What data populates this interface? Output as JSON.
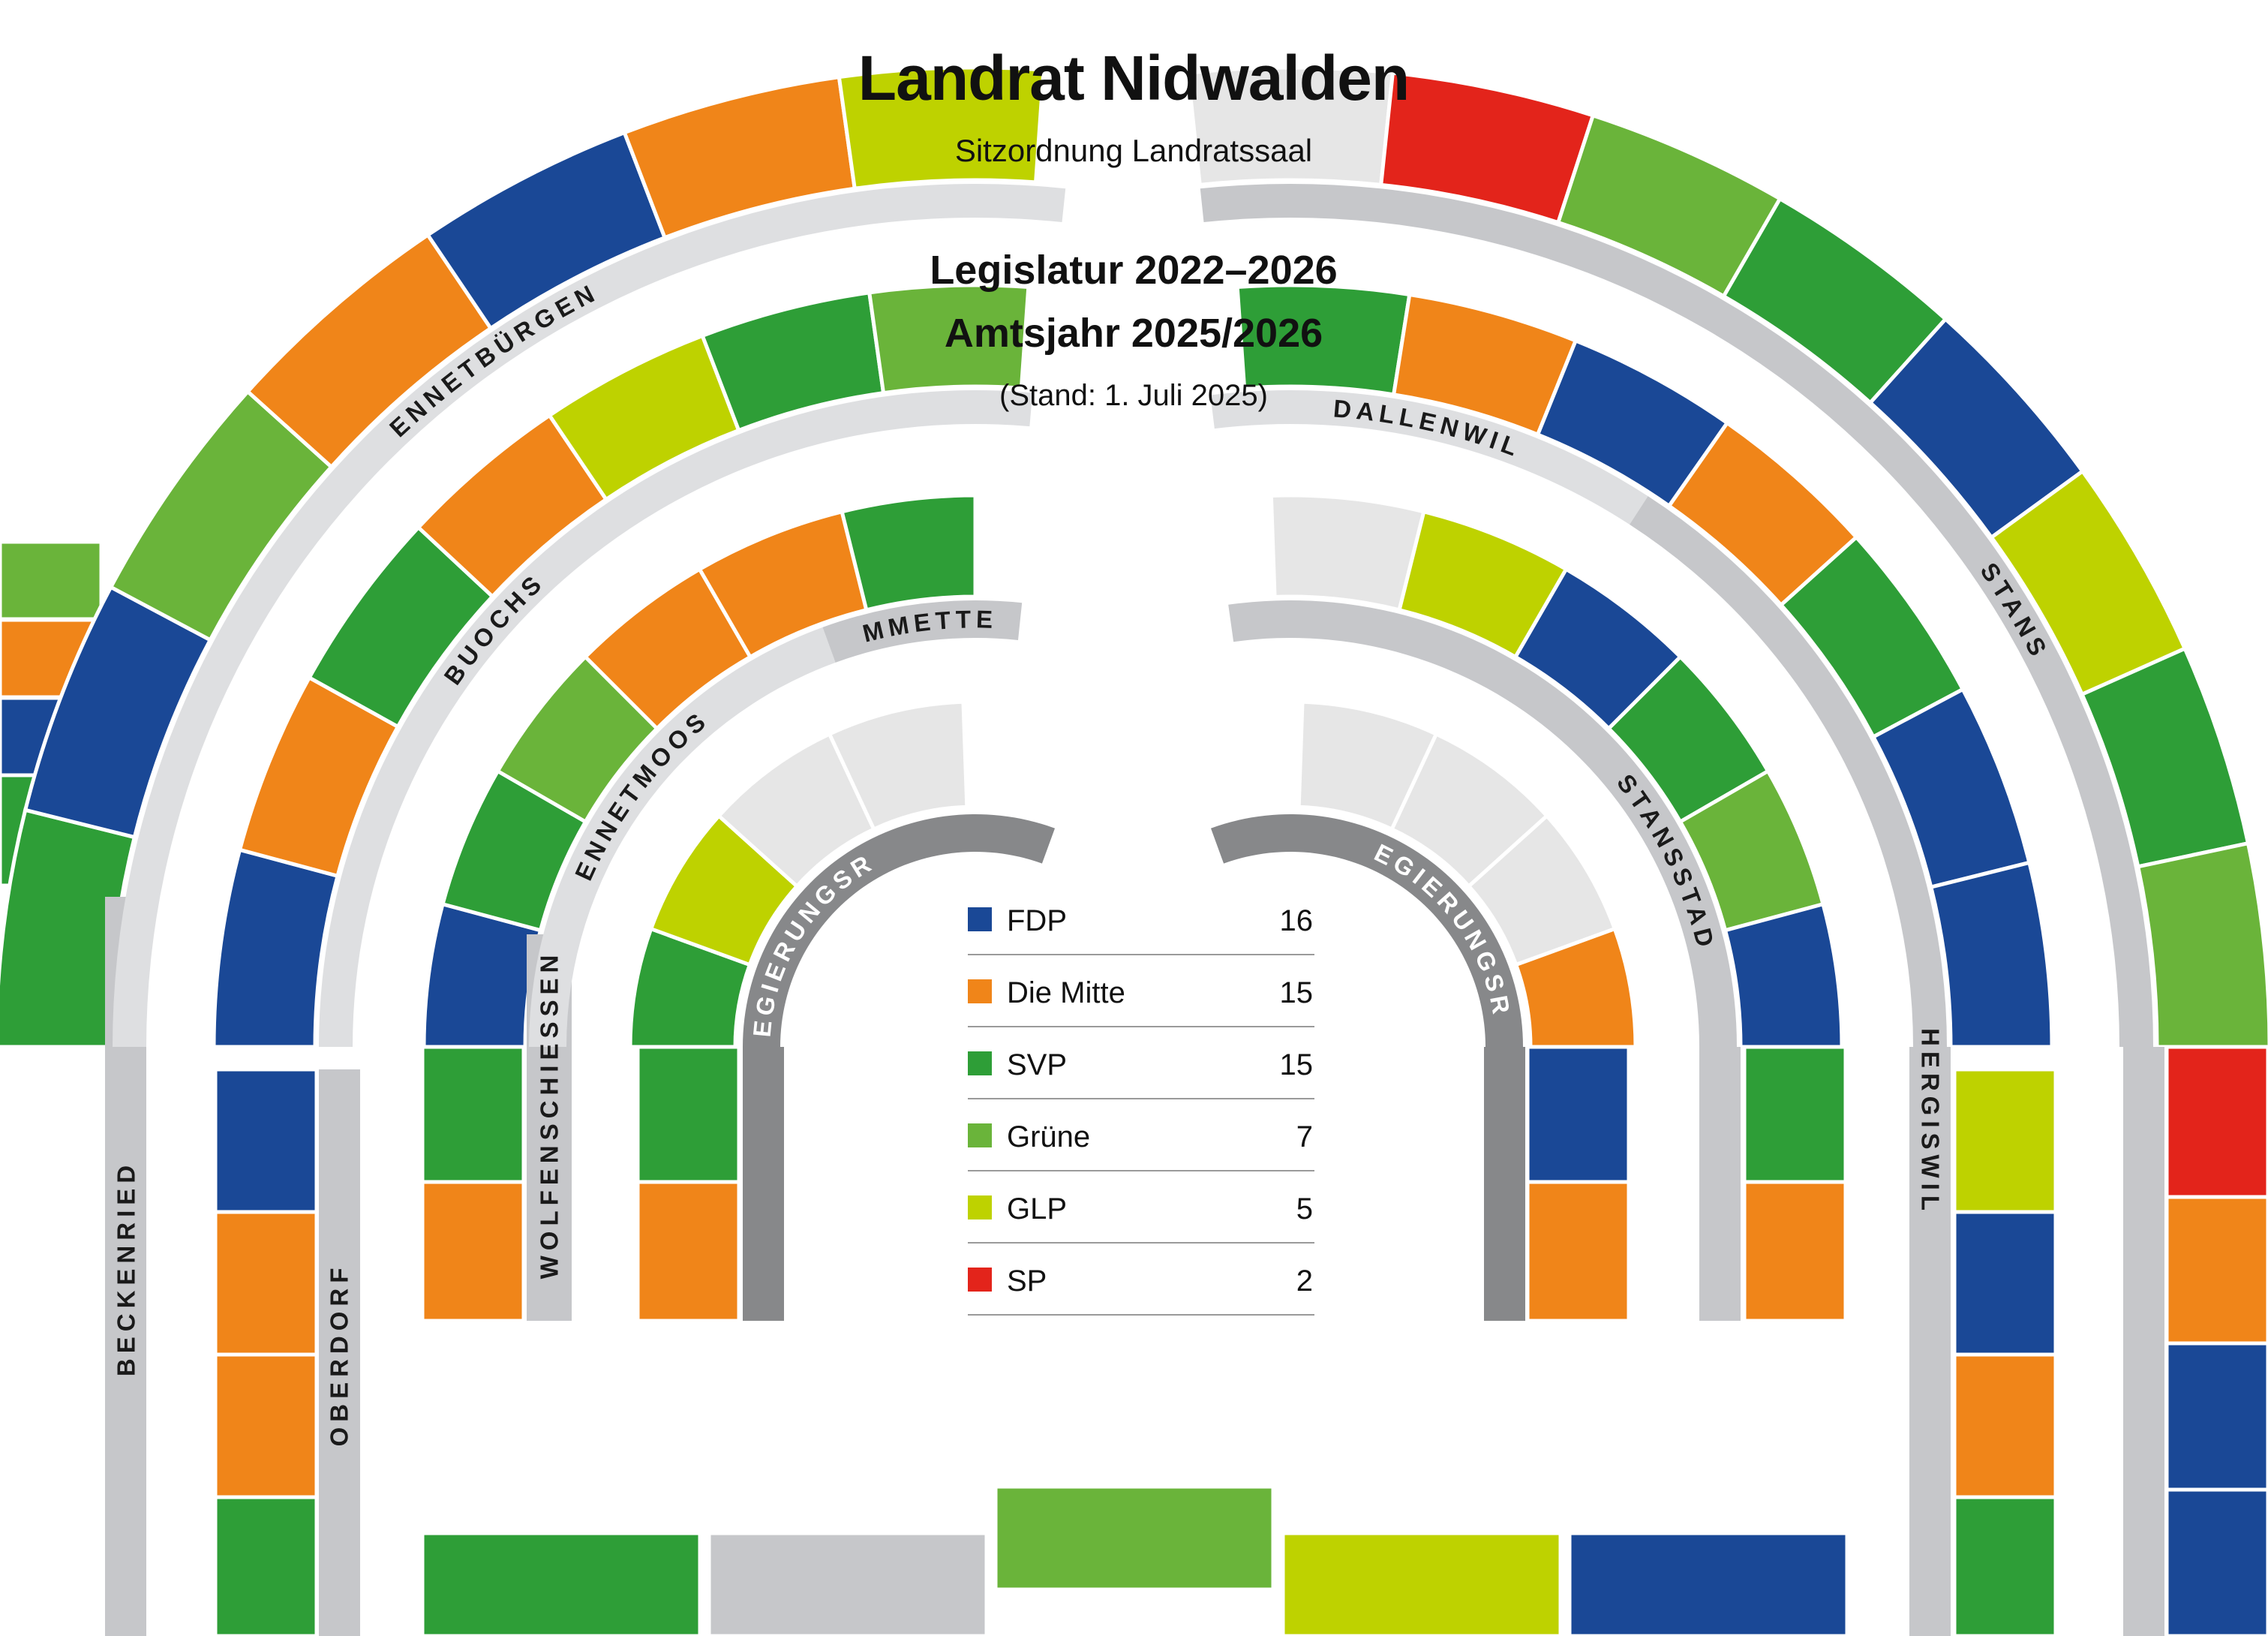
{
  "header": {
    "title": "Landrat Nidwalden",
    "subtitle": "Sitzordnung Landratssaal",
    "legislatur": "Legislatur 2022–2026",
    "amtsjahr": "Amtsjahr 2025/2026",
    "stand": "(Stand: 1. Juli 2025)"
  },
  "colors": {
    "FDP": "#1a4896",
    "Die Mitte": "#f08519",
    "SVP": "#2e9e37",
    "Grüne": "#6ab43a",
    "GLP": "#bed200",
    "SP": "#e3241b",
    "empty": "#e6e6e6",
    "band_light": "#c6c7ca",
    "band_dark": "#87888a",
    "band_pale": "#dedfe1"
  },
  "legend": [
    {
      "party": "FDP",
      "count": "16"
    },
    {
      "party": "Die Mitte",
      "count": "15"
    },
    {
      "party": "SVP",
      "count": "15"
    },
    {
      "party": "Grüne",
      "count": "7"
    },
    {
      "party": "GLP",
      "count": "5"
    },
    {
      "party": "SP",
      "count": "2"
    }
  ],
  "municipalities": {
    "beckenried": "BECKENRIED",
    "ennetbuergen": "ENNETBÜRGEN",
    "oberdorf": "OBERDORF",
    "buochs": "BUOCHS",
    "wolfenschiessen": "WOLFENSCHIESSEN",
    "ennetmoos": "ENNETMOOS",
    "emmetten": "EMMETTEN",
    "regierungsrat_left": "REGIERUNGSRAT",
    "regierungsrat_right": "REGIERUNGSRAT",
    "stansstad": "STANSSTAD",
    "dallenwil": "DALLENWIL",
    "hergiswil": "HERGISWIL",
    "stans": "STANS"
  },
  "seats": {
    "left_outer": [
      "SVP",
      "FDP",
      "Die Mitte",
      "Grüne",
      "SVP",
      "FDP",
      "Grüne",
      "Die Mitte",
      "FDP",
      "Die Mitte",
      "GLP"
    ],
    "left_row2": [
      "SVP",
      "Die Mitte",
      "Die Mitte",
      "FDP",
      "FDP",
      "Die Mitte",
      "SVP",
      "Die Mitte",
      "GLP",
      "SVP",
      "Grüne"
    ],
    "left_row3": [
      "Die Mitte",
      "SVP",
      "FDP",
      "SVP",
      "Grüne",
      "Die Mitte",
      "Die Mitte",
      "SVP"
    ],
    "left_inner": [
      "Die Mitte",
      "SVP",
      "SVP",
      "GLP",
      "empty",
      "empty"
    ],
    "right_inner": [
      "empty",
      "empty",
      "empty",
      "Die Mitte",
      "FDP",
      "Die Mitte"
    ],
    "right_row3": [
      "empty",
      "GLP",
      "FDP",
      "SVP",
      "Grüne",
      "FDP",
      "SVP",
      "Die Mitte"
    ],
    "right_row2": [
      "SVP",
      "Die Mitte",
      "FDP",
      "Die Mitte",
      "SVP",
      "FDP",
      "FDP",
      "GLP",
      "FDP",
      "Die Mitte",
      "SVP"
    ],
    "right_outer": [
      "empty",
      "SP",
      "Grüne",
      "SVP",
      "FDP",
      "GLP",
      "SVP",
      "Grüne",
      "SP",
      "Die Mitte",
      "FDP",
      "FDP"
    ],
    "front_row": [
      "SVP",
      "empty_gray",
      "Grüne",
      "GLP",
      "FDP"
    ]
  }
}
